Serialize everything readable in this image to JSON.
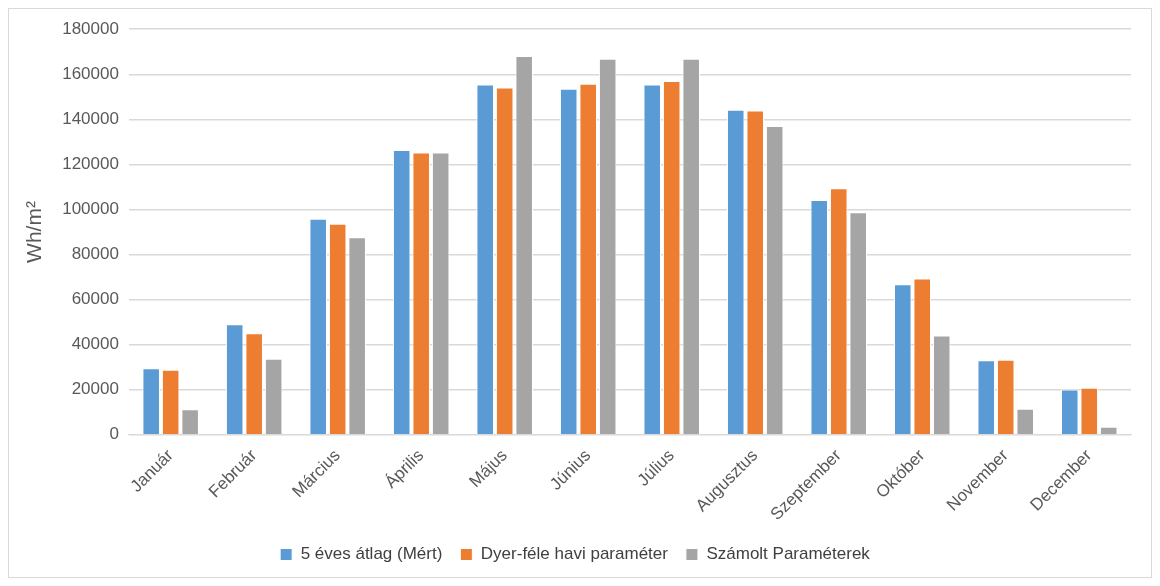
{
  "chart_data": {
    "type": "bar",
    "ylabel": "Wh/m²",
    "categories": [
      "Január",
      "Február",
      "Március",
      "Április",
      "Május",
      "Június",
      "Július",
      "Augusztus",
      "Szeptember",
      "Október",
      "November",
      "December"
    ],
    "series": [
      {
        "name": "5 éves átlag (Mért)",
        "color": "#5b9bd5",
        "values": [
          29500,
          49000,
          95900,
          126400,
          155500,
          153600,
          155500,
          144300,
          104200,
          66800,
          33100,
          20100
        ]
      },
      {
        "name": "Dyer-féle havi paraméter",
        "color": "#ed7d31",
        "values": [
          28800,
          45000,
          93600,
          125300,
          154100,
          155800,
          157000,
          143900,
          109400,
          69400,
          33300,
          20900
        ]
      },
      {
        "name": "Számolt Paraméterek",
        "color": "#a5a5a5",
        "values": [
          11300,
          33700,
          87700,
          125300,
          168100,
          166900,
          166900,
          137000,
          98800,
          44100,
          11600,
          3600
        ]
      }
    ],
    "ylim": [
      0,
      180000
    ],
    "yticks": [
      0,
      20000,
      40000,
      60000,
      80000,
      100000,
      120000,
      140000,
      160000,
      180000
    ],
    "grid": "y",
    "legend": "bottom"
  }
}
